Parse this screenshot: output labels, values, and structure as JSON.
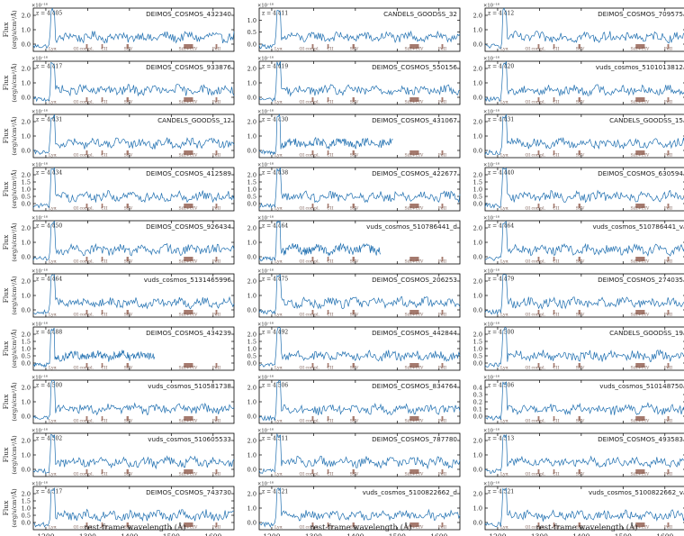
{
  "chart_data": {
    "type": "line",
    "xlabel": "rest-frame wavelength (Å)",
    "ylabel": [
      "Flux",
      "(erg/s/cm²/Å)"
    ],
    "scale_label": "×10⁻¹⁸",
    "xlim": [
      1170,
      1650
    ],
    "xticks": [
      1200,
      1300,
      1400,
      1500,
      1600
    ],
    "line_color": "#1f6fb0",
    "marker_color": "#a57a6e",
    "features": [
      {
        "label": "Lyα",
        "x": 1216
      },
      {
        "label": "OI compl.",
        "x": 1303
      },
      {
        "label": "CII",
        "x": 1335
      },
      {
        "label": "SiIV",
        "x": 1397
      },
      {
        "label": "SiII+CIV",
        "x": 1540
      },
      {
        "label": "FeII",
        "x": 1608
      }
    ],
    "panels": [
      {
        "name": "DEIMOS_COSMOS_432340",
        "z": "z = 4.405",
        "ylim": [
          -0.5,
          2.5
        ],
        "yticks": [
          "0.0",
          "1.0",
          "2.0"
        ]
      },
      {
        "name": "CANDELS_GOODSS_32",
        "z": "z = 4.411",
        "ylim": [
          -0.3,
          1.5
        ],
        "yticks": [
          "0.0",
          "0.5",
          "1.0"
        ]
      },
      {
        "name": "DEIMOS_COSMOS_709575",
        "z": "z = 4.412",
        "ylim": [
          -0.5,
          2.5
        ],
        "yticks": [
          "0.0",
          "1.0",
          "2.0"
        ]
      },
      {
        "name": "DEIMOS_COSMOS_933876",
        "z": "z = 4.417",
        "ylim": [
          -0.5,
          2.5
        ],
        "yticks": [
          "0.0",
          "1.0",
          "2.0"
        ]
      },
      {
        "name": "DEIMOS_COSMOS_550156",
        "z": "z = 4.419",
        "ylim": [
          -0.5,
          2.5
        ],
        "yticks": [
          "0.0",
          "1.0",
          "2.0"
        ]
      },
      {
        "name": "vuds_cosmos_5101013812",
        "z": "z = 4.420",
        "ylim": [
          -0.5,
          2.5
        ],
        "yticks": [
          "0.0",
          "1.0",
          "2.0"
        ]
      },
      {
        "name": "CANDELS_GOODSS_12",
        "z": "z = 4.431",
        "ylim": [
          -0.5,
          2.5
        ],
        "yticks": [
          "0.0",
          "1.0",
          "2.0"
        ]
      },
      {
        "name": "DEIMOS_COSMOS_431067",
        "z": "z = 4.430",
        "ylim": [
          -0.5,
          2.5
        ],
        "yticks": [
          "0.0",
          "1.0",
          "2.0"
        ]
      },
      {
        "name": "CANDELS_GOODSS_15",
        "z": "z = 4.431",
        "ylim": [
          -0.5,
          2.5
        ],
        "yticks": [
          "0.0",
          "1.0",
          "2.0"
        ]
      },
      {
        "name": "DEIMOS_COSMOS_412589",
        "z": "z = 4.434",
        "ylim": [
          -0.5,
          2.5
        ],
        "yticks": [
          "0.0",
          "0.5",
          "1.0",
          "1.5",
          "2.0"
        ]
      },
      {
        "name": "DEIMOS_COSMOS_422677",
        "z": "z = 4.438",
        "ylim": [
          -0.5,
          2.5
        ],
        "yticks": [
          "0.0",
          "0.5",
          "1.0",
          "1.5",
          "2.0"
        ]
      },
      {
        "name": "DEIMOS_COSMOS_630594",
        "z": "z = 4.440",
        "ylim": [
          -0.5,
          2.5
        ],
        "yticks": [
          "0.0",
          "0.5",
          "1.0",
          "1.5",
          "2.0"
        ]
      },
      {
        "name": "DEIMOS_COSMOS_926434",
        "z": "z = 4.450",
        "ylim": [
          -0.5,
          2.5
        ],
        "yticks": [
          "0.0",
          "1.0",
          "2.0"
        ]
      },
      {
        "name": "vuds_cosmos_510786441_d",
        "z": "z = 4.464",
        "ylim": [
          -0.5,
          2.5
        ],
        "yticks": [
          "0.0",
          "1.0",
          "2.0"
        ]
      },
      {
        "name": "vuds_cosmos_510786441_v",
        "z": "z = 4.464",
        "ylim": [
          -0.5,
          2.5
        ],
        "yticks": [
          "0.0",
          "1.0",
          "2.0"
        ]
      },
      {
        "name": "vuds_cosmos_5131465996",
        "z": "z = 4.464",
        "ylim": [
          -0.5,
          2.5
        ],
        "yticks": [
          "0.0",
          "1.0",
          "2.0"
        ]
      },
      {
        "name": "DEIMOS_COSMOS_206253",
        "z": "z = 4.475",
        "ylim": [
          -0.5,
          2.5
        ],
        "yticks": [
          "0.0",
          "1.0",
          "2.0"
        ]
      },
      {
        "name": "DEIMOS_COSMOS_274035",
        "z": "z = 4.479",
        "ylim": [
          -0.5,
          2.5
        ],
        "yticks": [
          "0.0",
          "1.0",
          "2.0"
        ]
      },
      {
        "name": "DEIMOS_COSMOS_434239",
        "z": "z = 4.488",
        "ylim": [
          -0.5,
          2.5
        ],
        "yticks": [
          "0.0",
          "0.5",
          "1.0",
          "1.5",
          "2.0"
        ]
      },
      {
        "name": "DEIMOS_COSMOS_442844",
        "z": "z = 4.492",
        "ylim": [
          -0.5,
          2.5
        ],
        "yticks": [
          "0.0",
          "0.5",
          "1.0",
          "1.5",
          "2.0"
        ]
      },
      {
        "name": "CANDELS_GOODSS_19",
        "z": "z = 4.500",
        "ylim": [
          -0.5,
          2.5
        ],
        "yticks": [
          "0.0",
          "0.5",
          "1.0",
          "1.5",
          "2.0"
        ]
      },
      {
        "name": "vuds_cosmos_510581738",
        "z": "z = 4.500",
        "ylim": [
          -0.5,
          2.5
        ],
        "yticks": [
          "0.0",
          "1.0",
          "2.0"
        ]
      },
      {
        "name": "DEIMOS_COSMOS_834764",
        "z": "z = 4.506",
        "ylim": [
          -0.5,
          2.5
        ],
        "yticks": [
          "0.0",
          "1.0",
          "2.0"
        ]
      },
      {
        "name": "vuds_cosmos_510148750",
        "z": "z = 4.506",
        "ylim": [
          -0.1,
          0.5
        ],
        "yticks": [
          "0.0",
          "0.1",
          "0.2",
          "0.3",
          "0.4"
        ]
      },
      {
        "name": "vuds_cosmos_510605533",
        "z": "z = 4.502",
        "ylim": [
          -0.5,
          2.5
        ],
        "yticks": [
          "0.0",
          "1.0",
          "2.0"
        ]
      },
      {
        "name": "DEIMOS_COSMOS_787780",
        "z": "z = 4.511",
        "ylim": [
          -0.5,
          2.5
        ],
        "yticks": [
          "0.0",
          "1.0",
          "2.0"
        ]
      },
      {
        "name": "DEIMOS_COSMOS_493583",
        "z": "z = 4.513",
        "ylim": [
          -0.5,
          2.5
        ],
        "yticks": [
          "0.0",
          "1.0",
          "2.0"
        ]
      },
      {
        "name": "DEIMOS_COSMOS_743730",
        "z": "z = 4.517",
        "ylim": [
          -0.5,
          2.5
        ],
        "yticks": [
          "0.0",
          "0.5",
          "1.0",
          "1.5",
          "2.0"
        ]
      },
      {
        "name": "vuds_cosmos_5100822662_d",
        "z": "z = 4.521",
        "ylim": [
          -0.5,
          2.5
        ],
        "yticks": [
          "0.0",
          "1.0",
          "2.0"
        ]
      },
      {
        "name": "vuds_cosmos_5100822662_v",
        "z": "z = 4.521",
        "ylim": [
          -0.5,
          2.5
        ],
        "yticks": [
          "0.0",
          "1.0",
          "2.0"
        ]
      }
    ]
  }
}
